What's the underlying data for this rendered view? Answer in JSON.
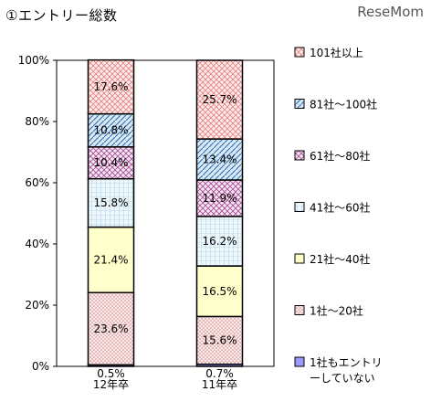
{
  "title": "①エントリー総数",
  "watermark": "ReseMom",
  "chart_data": {
    "type": "bar",
    "stacked": true,
    "normalized": true,
    "categories": [
      "12年卒",
      "11年卒"
    ],
    "ylim": [
      0,
      100
    ],
    "yticks": [
      "0%",
      "20%",
      "40%",
      "60%",
      "80%",
      "100%"
    ],
    "grid": false,
    "legend_position": "right",
    "series": [
      {
        "name": "1社もエントリーしていない",
        "values": [
          0.5,
          0.7
        ],
        "labels": [
          "0.5%",
          "0.7%"
        ],
        "color": "#9999ff",
        "pattern": "solid"
      },
      {
        "name": "1社～20社",
        "values": [
          23.6,
          15.6
        ],
        "labels": [
          "23.6%",
          "15.6%"
        ],
        "color": "#f2d6d6",
        "pattern": "dots"
      },
      {
        "name": "21社～40社",
        "values": [
          21.4,
          16.5
        ],
        "labels": [
          "21.4%",
          "16.5%"
        ],
        "color": "#ffffcc",
        "pattern": "solid"
      },
      {
        "name": "41社～60社",
        "values": [
          15.8,
          16.2
        ],
        "labels": [
          "15.8%",
          "16.2%"
        ],
        "color": "#d9f0f8",
        "pattern": "grid"
      },
      {
        "name": "61社～80社",
        "values": [
          10.4,
          11.9
        ],
        "labels": [
          "10.4%",
          "11.9%"
        ],
        "color": "#f5e0f0",
        "pattern": "crosshatch"
      },
      {
        "name": "81社～100社",
        "values": [
          10.8,
          13.4
        ],
        "labels": [
          "10.8%",
          "13.4%"
        ],
        "color": "#c8dcf0",
        "pattern": "diagonal"
      },
      {
        "name": "101社以上",
        "values": [
          17.6,
          25.7
        ],
        "labels": [
          "17.6%",
          "25.7%"
        ],
        "color": "#ffe0e0",
        "pattern": "checker"
      }
    ]
  }
}
